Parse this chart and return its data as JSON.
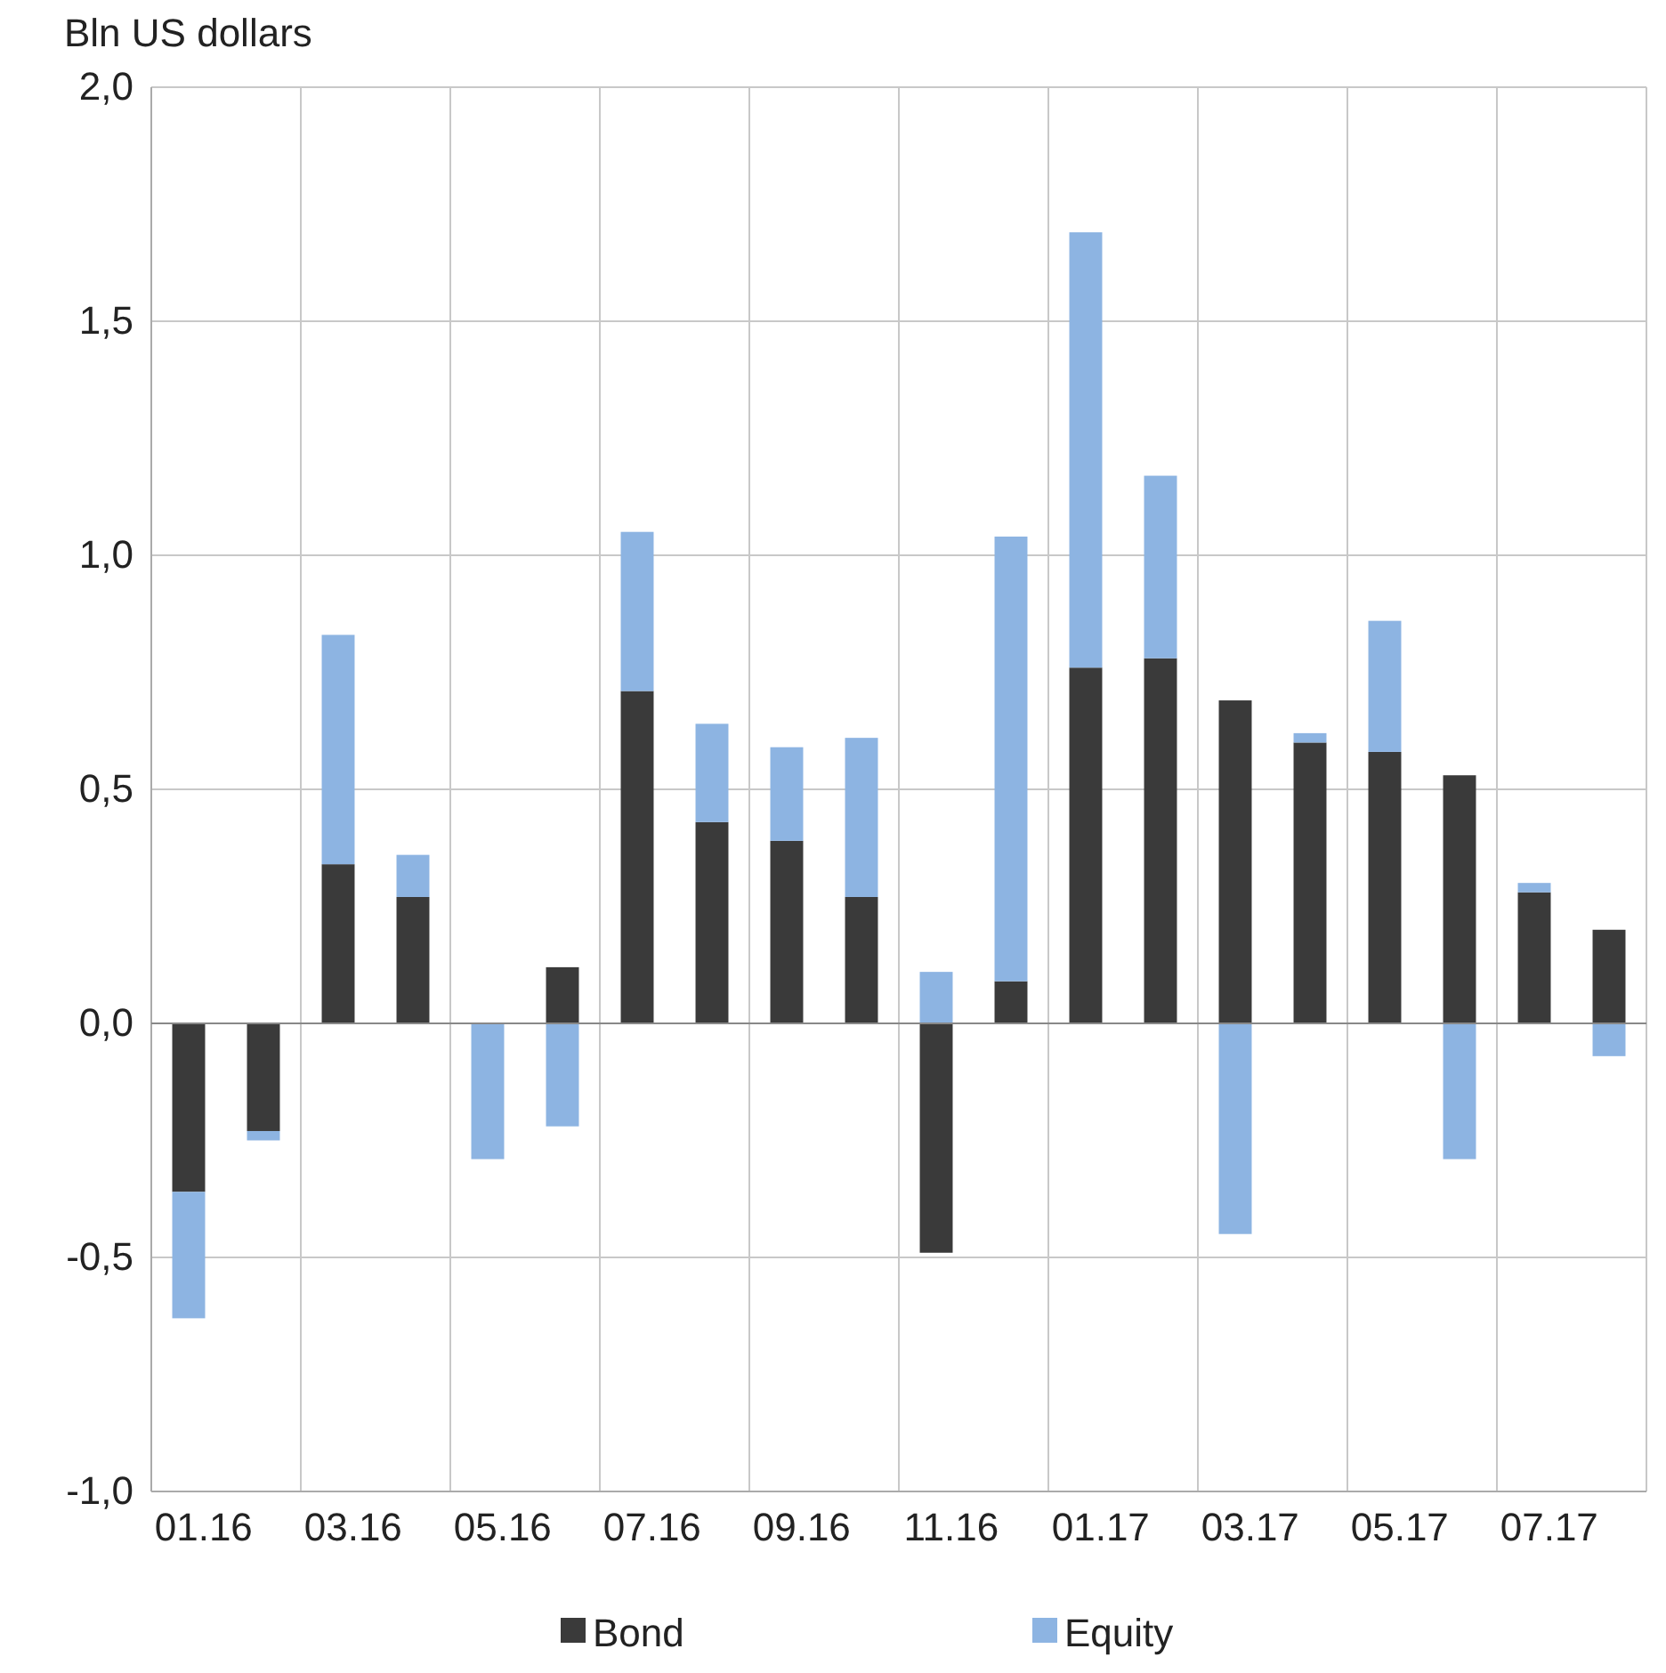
{
  "chart_data": {
    "type": "bar",
    "stacked": true,
    "ylabel": "Bln US dollars",
    "categories": [
      "01.16",
      null,
      "03.16",
      null,
      "05.16",
      null,
      "07.16",
      null,
      "09.16",
      null,
      "11.16",
      null,
      "01.17",
      null,
      "03.17",
      null,
      "05.17",
      null,
      "07.17",
      null
    ],
    "series": [
      {
        "name": "Bond",
        "color": "#3a3a3a",
        "values": [
          -0.36,
          -0.23,
          0.34,
          0.27,
          0,
          0.12,
          0.71,
          0.43,
          0.39,
          0.27,
          -0.49,
          0.09,
          0.76,
          0.78,
          0.69,
          0.6,
          0.58,
          0.53,
          0.28,
          0.2
        ]
      },
      {
        "name": "Equity",
        "color": "#8db4e2",
        "values": [
          -0.27,
          -0.02,
          0.49,
          0.09,
          -0.29,
          -0.22,
          0.34,
          0.21,
          0.2,
          0.34,
          0.11,
          0.95,
          0.93,
          0.39,
          -0.45,
          0.02,
          0.28,
          -0.29,
          0.02,
          -0.07
        ]
      }
    ],
    "ylim": [
      -1,
      2
    ],
    "yticks": [
      {
        "value": -1,
        "label": "-1,0"
      },
      {
        "value": -0.5,
        "label": "-0,5"
      },
      {
        "value": 0,
        "label": "0,0"
      },
      {
        "value": 0.5,
        "label": "0,5"
      },
      {
        "value": 1,
        "label": "1,0"
      },
      {
        "value": 1.5,
        "label": "1,5"
      },
      {
        "value": 2,
        "label": "2,0"
      }
    ],
    "grid": true,
    "legend": "bottom"
  }
}
